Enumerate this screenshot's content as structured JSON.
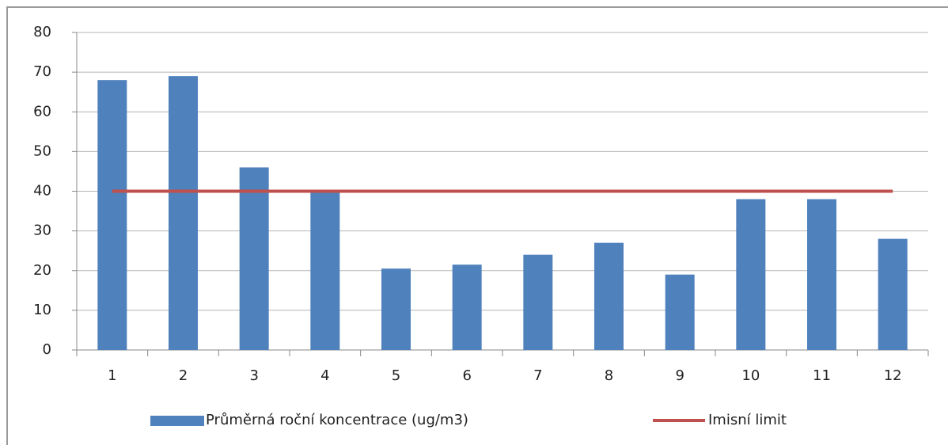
{
  "chart_data": {
    "type": "bar",
    "categories": [
      "1",
      "2",
      "3",
      "4",
      "5",
      "6",
      "7",
      "8",
      "9",
      "10",
      "11",
      "12"
    ],
    "series": [
      {
        "name": "Průměrná roční koncentrace (ug/m3)",
        "type": "bar",
        "color": "#4f81bd",
        "values": [
          68,
          69,
          46,
          40,
          20.5,
          21.5,
          24,
          27,
          19,
          38,
          38,
          28
        ]
      },
      {
        "name": "Imisní limit",
        "type": "line",
        "color": "#c0504d",
        "values": [
          40,
          40,
          40,
          40,
          40,
          40,
          40,
          40,
          40,
          40,
          40,
          40
        ]
      }
    ],
    "ylim": [
      0,
      80
    ],
    "yticks": [
      0,
      10,
      20,
      30,
      40,
      50,
      60,
      70,
      80
    ],
    "grid": true,
    "legend": "bottom"
  }
}
